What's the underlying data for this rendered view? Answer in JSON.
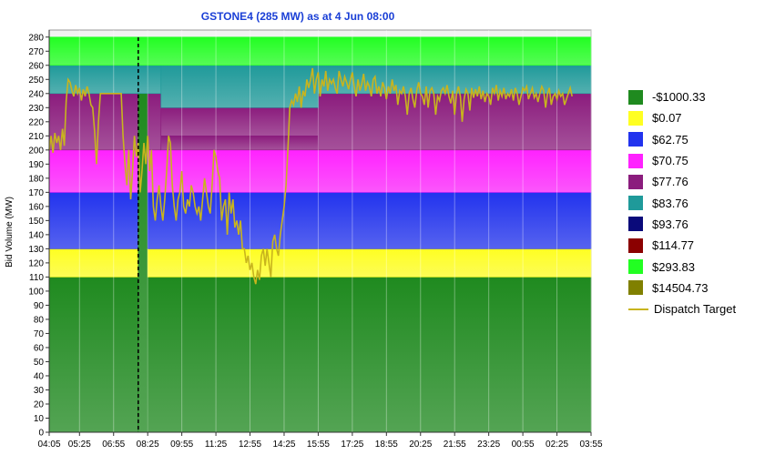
{
  "chart_data": {
    "type": "area",
    "title": "GSTONE4 (285 MW) as at 4 Jun 08:00",
    "ylabel": "Bid Volume (MW)",
    "ylim": [
      0,
      285
    ],
    "yticks": [
      0,
      10,
      20,
      30,
      40,
      50,
      60,
      70,
      80,
      90,
      100,
      110,
      120,
      130,
      140,
      150,
      160,
      170,
      180,
      190,
      200,
      210,
      220,
      230,
      240,
      250,
      260,
      270,
      280
    ],
    "xticks": [
      "04:05",
      "05:25",
      "06:55",
      "08:25",
      "09:55",
      "11:25",
      "12:55",
      "14:25",
      "15:55",
      "17:25",
      "18:55",
      "20:25",
      "21:55",
      "23:25",
      "00:55",
      "02:25",
      "03:55"
    ],
    "current_time_marker": "08:00",
    "legend_placement": "right",
    "bands": [
      {
        "price": "-$1000.33",
        "color": "#1f8a1f"
      },
      {
        "price": "$0.07",
        "color": "#ffff22"
      },
      {
        "price": "$62.75",
        "color": "#2233ee"
      },
      {
        "price": "$70.75",
        "color": "#ff22ff"
      },
      {
        "price": "$77.76",
        "color": "#8b1c7d"
      },
      {
        "price": "$83.76",
        "color": "#1f9a9a"
      },
      {
        "price": "$93.76",
        "color": "#0a0a7a"
      },
      {
        "price": "$114.77",
        "color": "#8b0000"
      },
      {
        "price": "$293.83",
        "color": "#22ff22"
      },
      {
        "price": "$14504.73",
        "color": "#808000"
      }
    ],
    "band_segments": [
      {
        "band": 0,
        "from": "04:05",
        "to": "08:00",
        "mw": [
          0,
          110
        ]
      },
      {
        "band": 1,
        "from": "04:05",
        "to": "08:00",
        "mw": [
          110,
          130
        ]
      },
      {
        "band": 2,
        "from": "04:05",
        "to": "08:00",
        "mw": [
          130,
          170
        ]
      },
      {
        "band": 3,
        "from": "04:05",
        "to": "08:00",
        "mw": [
          170,
          200
        ]
      },
      {
        "band": 4,
        "from": "04:05",
        "to": "08:00",
        "mw": [
          200,
          240
        ]
      },
      {
        "band": 5,
        "from": "04:05",
        "to": "08:00",
        "mw": [
          240,
          260
        ]
      },
      {
        "band": 8,
        "from": "04:05",
        "to": "08:00",
        "mw": [
          260,
          280
        ]
      },
      {
        "band": 0,
        "from": "08:00",
        "to": "08:25",
        "mw": [
          0,
          240
        ]
      },
      {
        "band": 5,
        "from": "08:00",
        "to": "08:25",
        "mw": [
          240,
          260
        ]
      },
      {
        "band": 8,
        "from": "08:00",
        "to": "08:25",
        "mw": [
          260,
          280
        ]
      },
      {
        "band": 0,
        "from": "08:25",
        "to": "03:55",
        "mw": [
          0,
          110
        ]
      },
      {
        "band": 1,
        "from": "08:25",
        "to": "03:55",
        "mw": [
          110,
          130
        ]
      },
      {
        "band": 2,
        "from": "08:25",
        "to": "03:55",
        "mw": [
          130,
          170
        ]
      },
      {
        "band": 3,
        "from": "08:25",
        "to": "03:55",
        "mw": [
          170,
          200
        ]
      },
      {
        "band": 4,
        "from": "08:25",
        "to": "09:00",
        "mw": [
          200,
          240
        ]
      },
      {
        "band": 4,
        "from": "09:00",
        "to": "15:55",
        "mw": [
          200,
          210
        ]
      },
      {
        "band": 4,
        "from": "09:00",
        "to": "15:55",
        "mw": [
          210,
          230
        ]
      },
      {
        "band": 4,
        "from": "15:55",
        "to": "03:55",
        "mw": [
          200,
          240
        ]
      },
      {
        "band": 5,
        "from": "08:25",
        "to": "09:00",
        "mw": [
          240,
          260
        ]
      },
      {
        "band": 5,
        "from": "09:00",
        "to": "15:55",
        "mw": [
          230,
          260
        ]
      },
      {
        "band": 5,
        "from": "15:55",
        "to": "03:55",
        "mw": [
          240,
          260
        ]
      },
      {
        "band": 8,
        "from": "08:25",
        "to": "03:55",
        "mw": [
          260,
          280
        ]
      }
    ],
    "series": [
      {
        "name": "Dispatch Target",
        "color": "#c8b41e",
        "x_minutes_from_start": [
          0,
          5,
          10,
          15,
          20,
          25,
          30,
          35,
          40,
          45,
          50,
          55,
          60,
          65,
          70,
          75,
          80,
          85,
          90,
          95,
          100,
          105,
          110,
          115,
          120,
          125,
          130,
          135,
          140,
          145,
          150,
          155,
          160,
          165,
          170,
          175,
          180,
          185,
          190,
          195,
          200,
          205,
          210,
          215,
          220,
          225,
          230,
          235,
          240,
          245,
          250,
          255,
          260,
          265,
          270,
          275,
          280,
          285,
          290,
          295,
          300,
          305,
          310,
          315,
          320,
          325,
          330,
          335,
          340,
          345,
          350,
          355,
          360,
          365,
          370,
          375,
          380,
          385,
          390,
          395,
          400,
          405,
          410,
          415,
          420,
          425,
          430,
          435,
          440,
          445,
          450,
          455,
          460,
          465,
          470,
          475,
          480,
          485,
          490,
          495,
          500,
          505,
          510,
          515,
          520,
          525,
          530,
          535,
          540,
          545,
          550,
          555,
          560,
          565,
          570,
          575,
          580,
          585,
          590,
          595,
          600,
          605,
          610,
          615,
          620,
          625,
          630,
          635,
          640,
          645,
          650,
          655,
          660,
          665,
          670,
          675,
          680,
          685,
          690,
          695,
          700,
          705,
          710,
          715,
          720,
          725,
          730,
          735,
          740,
          745,
          750,
          755,
          760,
          765,
          770,
          775,
          780,
          785,
          790,
          795,
          800,
          805,
          810,
          815,
          820,
          825,
          830,
          835,
          840,
          845,
          850,
          855,
          860,
          865,
          870,
          875,
          880,
          885,
          890,
          895,
          900,
          905,
          910,
          915,
          920,
          925,
          930,
          935,
          940,
          945,
          950,
          955,
          960,
          965,
          970,
          975,
          980,
          985,
          990,
          995,
          1000,
          1005,
          1010,
          1015,
          1020,
          1025,
          1030,
          1035,
          1040,
          1045,
          1050,
          1055,
          1060,
          1065,
          1070,
          1075,
          1080,
          1085,
          1090,
          1095,
          1100,
          1105,
          1110,
          1115,
          1120,
          1125,
          1130,
          1135,
          1140,
          1145,
          1150,
          1155,
          1160,
          1165,
          1170,
          1175,
          1180,
          1185,
          1190,
          1195,
          1200,
          1205,
          1210,
          1215,
          1220,
          1225,
          1230,
          1235,
          1240,
          1245,
          1250,
          1255,
          1260,
          1265,
          1270,
          1275,
          1280,
          1285,
          1290,
          1295,
          1300,
          1305,
          1310,
          1315,
          1320,
          1325,
          1330,
          1335,
          1340,
          1345,
          1350,
          1355,
          1360,
          1365,
          1370,
          1375,
          1380,
          1385,
          1390,
          1395,
          1400,
          1405,
          1410,
          1415,
          1420,
          1425,
          1430,
          1435
        ],
        "values": [
          200,
          210,
          198,
          212,
          205,
          210,
          200,
          215,
          203,
          235,
          250,
          248,
          242,
          238,
          246,
          240,
          244,
          235,
          243,
          238,
          245,
          240,
          232,
          230,
          213,
          190,
          220,
          240,
          240,
          240,
          240,
          240,
          240,
          240,
          240,
          240,
          240,
          240,
          240,
          210,
          190,
          175,
          200,
          165,
          185,
          210,
          195,
          205,
          170,
          185,
          205,
          190,
          210,
          185,
          200,
          160,
          150,
          165,
          175,
          160,
          150,
          165,
          185,
          210,
          205,
          175,
          160,
          150,
          165,
          170,
          185,
          160,
          155,
          165,
          160,
          175,
          170,
          160,
          155,
          160,
          150,
          165,
          180,
          170,
          160,
          155,
          175,
          200,
          195,
          185,
          180,
          150,
          160,
          165,
          140,
          170,
          155,
          165,
          145,
          150,
          140,
          150,
          130,
          130,
          120,
          125,
          115,
          120,
          110,
          105,
          115,
          108,
          125,
          130,
          118,
          130,
          120,
          110,
          135,
          140,
          130,
          125,
          140,
          150,
          160,
          175,
          200,
          230,
          235,
          232,
          240,
          234,
          245,
          230,
          242,
          238,
          250,
          244,
          250,
          258,
          240,
          250,
          255,
          238,
          250,
          245,
          256,
          242,
          250,
          247,
          250,
          244,
          240,
          256,
          250,
          245,
          252,
          248,
          243,
          250,
          255,
          245,
          238,
          250,
          242,
          247,
          254,
          242,
          248,
          245,
          238,
          250,
          252,
          240,
          245,
          238,
          248,
          244,
          236,
          245,
          240,
          250,
          242,
          246,
          232,
          242,
          240,
          245,
          238,
          225,
          240,
          244,
          236,
          230,
          242,
          248,
          240,
          238,
          232,
          245,
          230,
          242,
          244,
          240,
          225,
          238,
          235,
          242,
          244,
          240,
          246,
          238,
          233,
          242,
          225,
          240,
          245,
          238,
          220,
          236,
          243,
          240,
          228,
          244,
          237,
          243,
          238,
          245,
          236,
          242,
          234,
          240,
          238,
          232,
          244,
          240,
          246,
          235,
          242,
          238,
          244,
          236,
          240,
          238,
          243,
          235,
          244,
          240,
          232,
          238,
          244,
          242,
          245,
          236,
          240,
          244,
          237,
          240,
          234,
          240,
          245,
          242,
          230,
          240,
          244,
          232,
          238,
          240,
          236,
          242,
          238,
          240,
          232,
          236,
          240,
          244,
          238
        ]
      }
    ]
  }
}
